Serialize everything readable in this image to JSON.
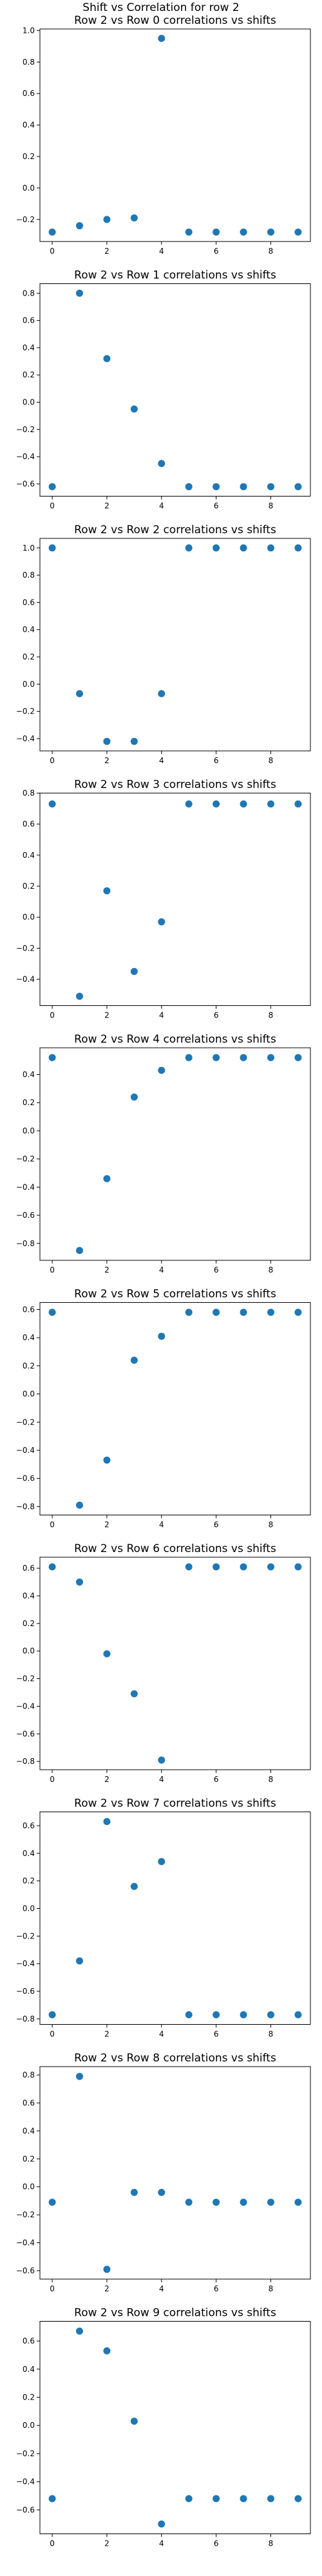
{
  "suptitle": "Shift vs Correlation for row 2",
  "marker_color": "#1f77b4",
  "chart_data": [
    {
      "type": "scatter",
      "title": "Row 2 vs Row 0 correlations vs shifts",
      "xlabel": "",
      "ylabel": "",
      "x": [
        0,
        1,
        2,
        3,
        4,
        5,
        6,
        7,
        8,
        9
      ],
      "y": [
        -0.28,
        -0.24,
        -0.2,
        -0.19,
        0.95,
        -0.28,
        -0.28,
        -0.28,
        -0.28,
        -0.28
      ],
      "xlim": [
        -0.45,
        9.45
      ],
      "ylim": [
        -0.34,
        1.01
      ],
      "xticks": [
        0,
        2,
        4,
        6,
        8
      ],
      "yticks": [
        -0.2,
        0.0,
        0.2,
        0.4,
        0.6,
        0.8,
        1.0
      ]
    },
    {
      "type": "scatter",
      "title": "Row 2 vs Row 1 correlations vs shifts",
      "xlabel": "",
      "ylabel": "",
      "x": [
        0,
        1,
        2,
        3,
        4,
        5,
        6,
        7,
        8,
        9
      ],
      "y": [
        -0.62,
        0.8,
        0.32,
        -0.05,
        -0.45,
        -0.62,
        -0.62,
        -0.62,
        -0.62,
        -0.62
      ],
      "xlim": [
        -0.45,
        9.45
      ],
      "ylim": [
        -0.69,
        0.87
      ],
      "xticks": [
        0,
        2,
        4,
        6,
        8
      ],
      "yticks": [
        -0.6,
        -0.4,
        -0.2,
        0.0,
        0.2,
        0.4,
        0.6,
        0.8
      ]
    },
    {
      "type": "scatter",
      "title": "Row 2 vs Row 2 correlations vs shifts",
      "xlabel": "",
      "ylabel": "",
      "x": [
        0,
        1,
        2,
        3,
        4,
        5,
        6,
        7,
        8,
        9
      ],
      "y": [
        1.0,
        -0.07,
        -0.42,
        -0.42,
        -0.07,
        1.0,
        1.0,
        1.0,
        1.0,
        1.0
      ],
      "xlim": [
        -0.45,
        9.45
      ],
      "ylim": [
        -0.49,
        1.07
      ],
      "xticks": [
        0,
        2,
        4,
        6,
        8
      ],
      "yticks": [
        -0.4,
        -0.2,
        0.0,
        0.2,
        0.4,
        0.6,
        0.8,
        1.0
      ]
    },
    {
      "type": "scatter",
      "title": "Row 2 vs Row 3 correlations vs shifts",
      "xlabel": "",
      "ylabel": "",
      "x": [
        0,
        1,
        2,
        3,
        4,
        5,
        6,
        7,
        8,
        9
      ],
      "y": [
        0.73,
        -0.51,
        0.17,
        -0.35,
        -0.03,
        0.73,
        0.73,
        0.73,
        0.73,
        0.73
      ],
      "xlim": [
        -0.45,
        9.45
      ],
      "ylim": [
        -0.57,
        0.8
      ],
      "xticks": [
        0,
        2,
        4,
        6,
        8
      ],
      "yticks": [
        -0.4,
        -0.2,
        0.0,
        0.2,
        0.4,
        0.6,
        0.8
      ]
    },
    {
      "type": "scatter",
      "title": "Row 2 vs Row 4 correlations vs shifts",
      "xlabel": "",
      "ylabel": "",
      "x": [
        0,
        1,
        2,
        3,
        4,
        5,
        6,
        7,
        8,
        9
      ],
      "y": [
        0.52,
        -0.85,
        -0.34,
        0.24,
        0.43,
        0.52,
        0.52,
        0.52,
        0.52,
        0.52
      ],
      "xlim": [
        -0.45,
        9.45
      ],
      "ylim": [
        -0.92,
        0.59
      ],
      "xticks": [
        0,
        2,
        4,
        6,
        8
      ],
      "yticks": [
        -0.8,
        -0.6,
        -0.4,
        -0.2,
        0.0,
        0.2,
        0.4
      ]
    },
    {
      "type": "scatter",
      "title": "Row 2 vs Row 5 correlations vs shifts",
      "xlabel": "",
      "ylabel": "",
      "x": [
        0,
        1,
        2,
        3,
        4,
        5,
        6,
        7,
        8,
        9
      ],
      "y": [
        0.58,
        -0.79,
        -0.47,
        0.24,
        0.41,
        0.58,
        0.58,
        0.58,
        0.58,
        0.58
      ],
      "xlim": [
        -0.45,
        9.45
      ],
      "ylim": [
        -0.86,
        0.65
      ],
      "xticks": [
        0,
        2,
        4,
        6,
        8
      ],
      "yticks": [
        -0.8,
        -0.6,
        -0.4,
        -0.2,
        0.0,
        0.2,
        0.4,
        0.6
      ]
    },
    {
      "type": "scatter",
      "title": "Row 2 vs Row 6 correlations vs shifts",
      "xlabel": "",
      "ylabel": "",
      "x": [
        0,
        1,
        2,
        3,
        4,
        5,
        6,
        7,
        8,
        9
      ],
      "y": [
        0.61,
        0.5,
        -0.02,
        -0.31,
        -0.79,
        0.61,
        0.61,
        0.61,
        0.61,
        0.61
      ],
      "xlim": [
        -0.45,
        9.45
      ],
      "ylim": [
        -0.86,
        0.68
      ],
      "xticks": [
        0,
        2,
        4,
        6,
        8
      ],
      "yticks": [
        -0.8,
        -0.6,
        -0.4,
        -0.2,
        0.0,
        0.2,
        0.4,
        0.6
      ]
    },
    {
      "type": "scatter",
      "title": "Row 2 vs Row 7 correlations vs shifts",
      "xlabel": "",
      "ylabel": "",
      "x": [
        0,
        1,
        2,
        3,
        4,
        5,
        6,
        7,
        8,
        9
      ],
      "y": [
        -0.77,
        -0.38,
        0.63,
        0.16,
        0.34,
        -0.77,
        -0.77,
        -0.77,
        -0.77,
        -0.77
      ],
      "xlim": [
        -0.45,
        9.45
      ],
      "ylim": [
        -0.84,
        0.7
      ],
      "xticks": [
        0,
        2,
        4,
        6,
        8
      ],
      "yticks": [
        -0.8,
        -0.6,
        -0.4,
        -0.2,
        0.0,
        0.2,
        0.4,
        0.6
      ]
    },
    {
      "type": "scatter",
      "title": "Row 2 vs Row 8 correlations vs shifts",
      "xlabel": "",
      "ylabel": "",
      "x": [
        0,
        1,
        2,
        3,
        4,
        5,
        6,
        7,
        8,
        9
      ],
      "y": [
        -0.11,
        0.79,
        -0.59,
        -0.04,
        -0.04,
        -0.11,
        -0.11,
        -0.11,
        -0.11,
        -0.11
      ],
      "xlim": [
        -0.45,
        9.45
      ],
      "ylim": [
        -0.66,
        0.86
      ],
      "xticks": [
        0,
        2,
        4,
        6,
        8
      ],
      "yticks": [
        -0.6,
        -0.4,
        -0.2,
        0.0,
        0.2,
        0.4,
        0.6,
        0.8
      ]
    },
    {
      "type": "scatter",
      "title": "Row 2 vs Row 9 correlations vs shifts",
      "xlabel": "",
      "ylabel": "",
      "x": [
        0,
        1,
        2,
        3,
        4,
        5,
        6,
        7,
        8,
        9
      ],
      "y": [
        -0.52,
        0.67,
        0.53,
        0.03,
        -0.7,
        -0.52,
        -0.52,
        -0.52,
        -0.52,
        -0.52
      ],
      "xlim": [
        -0.45,
        9.45
      ],
      "ylim": [
        -0.77,
        0.74
      ],
      "xticks": [
        0,
        2,
        4,
        6,
        8
      ],
      "yticks": [
        -0.6,
        -0.4,
        -0.2,
        0.0,
        0.2,
        0.4,
        0.6
      ]
    }
  ]
}
